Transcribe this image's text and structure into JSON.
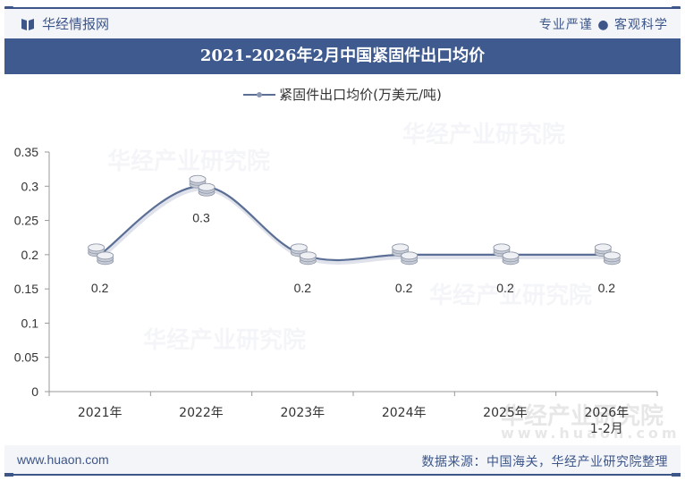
{
  "header": {
    "brand_name": "华经情报网",
    "slogan": "专业严谨 ● 客观科学",
    "title": "2021-2026年2月中国紧固件出口均价"
  },
  "legend": {
    "label": "紧固件出口均价(万美元/吨)"
  },
  "footer": {
    "site": "www.huaon.com",
    "source": "数据来源：中国海关，华经产业研究院整理"
  },
  "watermarks": [
    "华经产业研究院",
    "www.huaon.com"
  ],
  "colors": {
    "brand": "#3e5a8f",
    "line": "#5b6f96",
    "header_bg": "#f3f5f9"
  },
  "chart_data": {
    "type": "line",
    "title": "2021-2026年2月中国紧固件出口均价",
    "categories": [
      "2021年",
      "2022年",
      "2023年",
      "2024年",
      "2025年",
      "2026年\n1-2月"
    ],
    "series": [
      {
        "name": "紧固件出口均价(万美元/吨)",
        "values": [
          0.2,
          0.3,
          0.2,
          0.2,
          0.2,
          0.2
        ]
      }
    ],
    "data_labels": [
      "0.2",
      "0.3",
      "0.2",
      "0.2",
      "0.2",
      "0.2"
    ],
    "xlabel": "",
    "ylabel": "",
    "ylim": [
      0,
      0.35
    ],
    "yticks": [
      "0",
      "0.05",
      "0.1",
      "0.15",
      "0.2",
      "0.25",
      "0.3",
      "0.35"
    ],
    "grid": false,
    "legend_position": "top",
    "smooth": true,
    "marker": "coin-stack"
  }
}
